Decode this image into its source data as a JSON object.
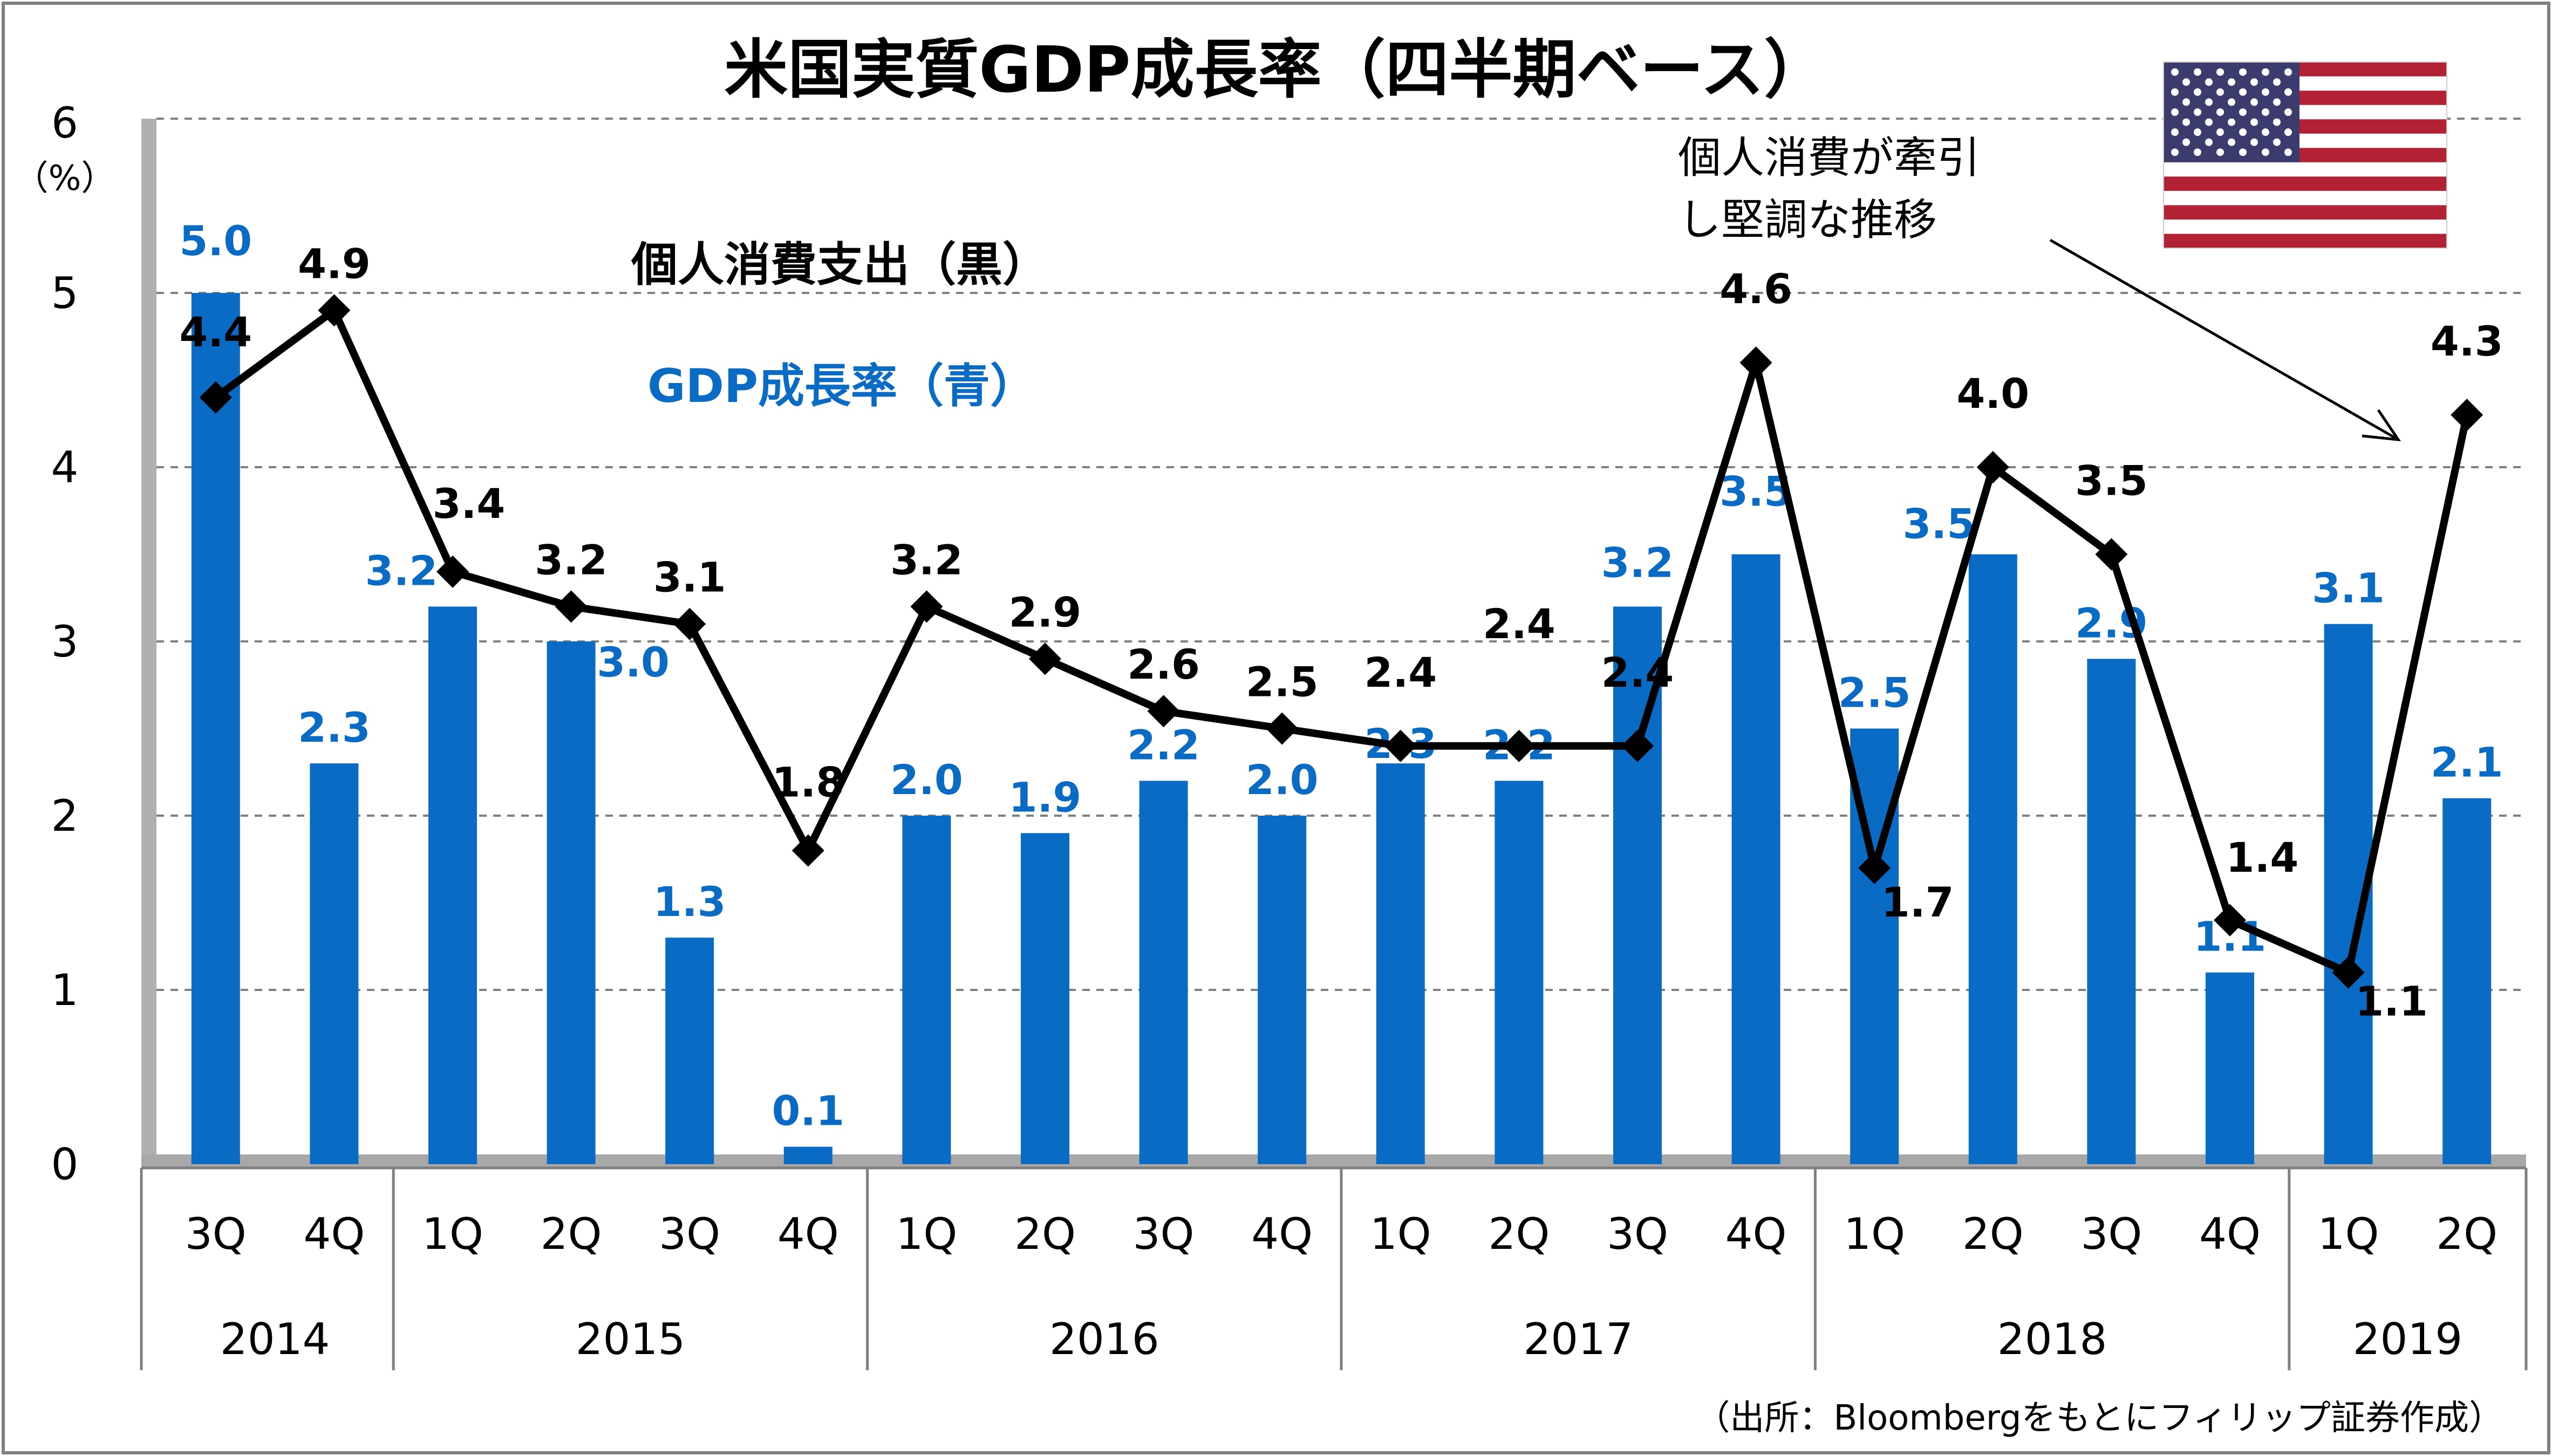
{
  "chart_data": {
    "type": "bar",
    "title": "米国実質GDP成長率（四半期ベース）",
    "y_unit_top": "6",
    "y_unit_label": "（%）",
    "ylim": [
      0,
      6
    ],
    "yticks": [
      "0",
      "1",
      "2",
      "3",
      "4",
      "5",
      "6"
    ],
    "grid": true,
    "categories": [
      "3Q",
      "4Q",
      "1Q",
      "2Q",
      "3Q",
      "4Q",
      "1Q",
      "2Q",
      "3Q",
      "4Q",
      "1Q",
      "2Q",
      "3Q",
      "4Q",
      "1Q",
      "2Q",
      "3Q",
      "4Q",
      "1Q",
      "2Q"
    ],
    "years": [
      {
        "label": "2014",
        "start": 0,
        "count": 2
      },
      {
        "label": "2015",
        "start": 2,
        "count": 4
      },
      {
        "label": "2016",
        "start": 6,
        "count": 4
      },
      {
        "label": "2017",
        "start": 10,
        "count": 4
      },
      {
        "label": "2018",
        "start": 14,
        "count": 4
      },
      {
        "label": "2019",
        "start": 18,
        "count": 2
      }
    ],
    "series": [
      {
        "name": "GDP成長率（青）",
        "kind": "bar",
        "color": "#0a6bc4",
        "values": [
          5.0,
          2.3,
          3.2,
          3.0,
          1.3,
          0.1,
          2.0,
          1.9,
          2.2,
          2.0,
          2.3,
          2.2,
          3.2,
          3.5,
          2.5,
          3.5,
          2.9,
          1.1,
          3.1,
          2.1
        ],
        "labels": [
          "5.0",
          "2.3",
          "3.2",
          "3.0",
          "1.3",
          "0.1",
          "2.0",
          "1.9",
          "2.2",
          "2.0",
          "2.3",
          "2.2",
          "3.2",
          "3.5",
          "2.5",
          "3.5",
          "2.9",
          "1.1",
          "3.1",
          "2.1"
        ]
      },
      {
        "name": "個人消費支出（黒）",
        "kind": "line",
        "color": "#000000",
        "values": [
          4.4,
          4.9,
          3.4,
          3.2,
          3.1,
          1.8,
          3.2,
          2.9,
          2.6,
          2.5,
          2.4,
          2.4,
          2.4,
          4.6,
          1.7,
          4.0,
          3.5,
          1.4,
          1.1,
          4.3
        ],
        "labels": [
          "4.4",
          "4.9",
          "3.4",
          "3.2",
          "3.1",
          "1.8",
          "3.2",
          "2.9",
          "2.6",
          "2.5",
          "2.4",
          "2.4",
          "2.4",
          "4.6",
          "1.7",
          "4.0",
          "3.5",
          "1.4",
          "1.1",
          "4.3"
        ]
      }
    ],
    "annotation": [
      "個人消費が牽引",
      "し堅調な推移"
    ],
    "source": "（出所：Bloombergをもとにフィリップ証券作成）"
  },
  "colors": {
    "bar": "#0a6bc4",
    "line": "#000000",
    "grid": "#7f7f7f"
  },
  "flag_icon": "us-flag-icon"
}
